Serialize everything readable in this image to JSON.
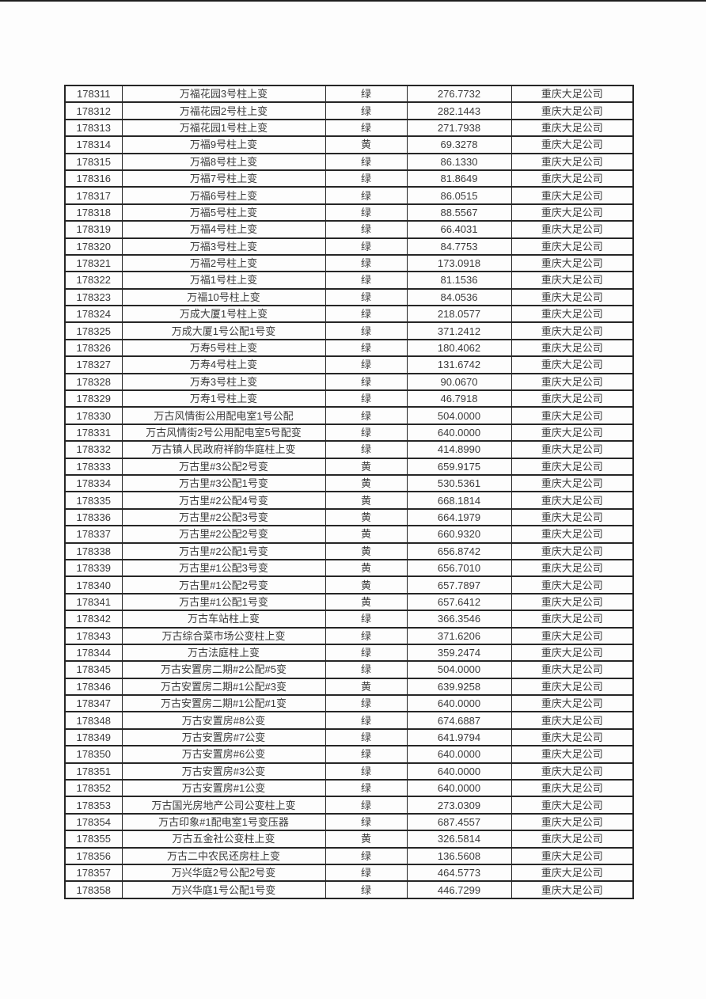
{
  "page": {
    "background_color": "#fdfdfd",
    "top_edge_color": "#1f1f1f",
    "table_border_color": "#262626",
    "text_color": "#3a3a3a"
  },
  "table": {
    "status_legend": {
      "green_label": "绿",
      "yellow_label": "黄"
    },
    "rows": [
      [
        "178311",
        "万福花园3号柱上变",
        "绿",
        "276.7732",
        "重庆大足公司"
      ],
      [
        "178312",
        "万福花园2号柱上变",
        "绿",
        "282.1443",
        "重庆大足公司"
      ],
      [
        "178313",
        "万福花园1号柱上变",
        "绿",
        "271.7938",
        "重庆大足公司"
      ],
      [
        "178314",
        "万福9号柱上变",
        "黄",
        "69.3278",
        "重庆大足公司"
      ],
      [
        "178315",
        "万福8号柱上变",
        "绿",
        "86.1330",
        "重庆大足公司"
      ],
      [
        "178316",
        "万福7号柱上变",
        "绿",
        "81.8649",
        "重庆大足公司"
      ],
      [
        "178317",
        "万福6号柱上变",
        "绿",
        "86.0515",
        "重庆大足公司"
      ],
      [
        "178318",
        "万福5号柱上变",
        "绿",
        "88.5567",
        "重庆大足公司"
      ],
      [
        "178319",
        "万福4号柱上变",
        "绿",
        "66.4031",
        "重庆大足公司"
      ],
      [
        "178320",
        "万福3号柱上变",
        "绿",
        "84.7753",
        "重庆大足公司"
      ],
      [
        "178321",
        "万福2号柱上变",
        "绿",
        "173.0918",
        "重庆大足公司"
      ],
      [
        "178322",
        "万福1号柱上变",
        "绿",
        "81.1536",
        "重庆大足公司"
      ],
      [
        "178323",
        "万福10号柱上变",
        "绿",
        "84.0536",
        "重庆大足公司"
      ],
      [
        "178324",
        "万成大厦1号柱上变",
        "绿",
        "218.0577",
        "重庆大足公司"
      ],
      [
        "178325",
        "万成大厦1号公配1号变",
        "绿",
        "371.2412",
        "重庆大足公司"
      ],
      [
        "178326",
        "万寿5号柱上变",
        "绿",
        "180.4062",
        "重庆大足公司"
      ],
      [
        "178327",
        "万寿4号柱上变",
        "绿",
        "131.6742",
        "重庆大足公司"
      ],
      [
        "178328",
        "万寿3号柱上变",
        "绿",
        "90.0670",
        "重庆大足公司"
      ],
      [
        "178329",
        "万寿1号柱上变",
        "绿",
        "46.7918",
        "重庆大足公司"
      ],
      [
        "178330",
        "万古风情街公用配电室1号公配",
        "绿",
        "504.0000",
        "重庆大足公司"
      ],
      [
        "178331",
        "万古风情街2号公用配电室5号配变",
        "绿",
        "640.0000",
        "重庆大足公司"
      ],
      [
        "178332",
        "万古镇人民政府祥韵华庭柱上变",
        "绿",
        "414.8990",
        "重庆大足公司"
      ],
      [
        "178333",
        "万古里#3公配2号变",
        "黄",
        "659.9175",
        "重庆大足公司"
      ],
      [
        "178334",
        "万古里#3公配1号变",
        "黄",
        "530.5361",
        "重庆大足公司"
      ],
      [
        "178335",
        "万古里#2公配4号变",
        "黄",
        "668.1814",
        "重庆大足公司"
      ],
      [
        "178336",
        "万古里#2公配3号变",
        "黄",
        "664.1979",
        "重庆大足公司"
      ],
      [
        "178337",
        "万古里#2公配2号变",
        "黄",
        "660.9320",
        "重庆大足公司"
      ],
      [
        "178338",
        "万古里#2公配1号变",
        "黄",
        "656.8742",
        "重庆大足公司"
      ],
      [
        "178339",
        "万古里#1公配3号变",
        "黄",
        "656.7010",
        "重庆大足公司"
      ],
      [
        "178340",
        "万古里#1公配2号变",
        "黄",
        "657.7897",
        "重庆大足公司"
      ],
      [
        "178341",
        "万古里#1公配1号变",
        "黄",
        "657.6412",
        "重庆大足公司"
      ],
      [
        "178342",
        "万古车站柱上变",
        "绿",
        "366.3546",
        "重庆大足公司"
      ],
      [
        "178343",
        "万古综合菜市场公变柱上变",
        "绿",
        "371.6206",
        "重庆大足公司"
      ],
      [
        "178344",
        "万古法庭柱上变",
        "绿",
        "359.2474",
        "重庆大足公司"
      ],
      [
        "178345",
        "万古安置房二期#2公配#5变",
        "绿",
        "504.0000",
        "重庆大足公司"
      ],
      [
        "178346",
        "万古安置房二期#1公配#3变",
        "黄",
        "639.9258",
        "重庆大足公司"
      ],
      [
        "178347",
        "万古安置房二期#1公配#1变",
        "绿",
        "640.0000",
        "重庆大足公司"
      ],
      [
        "178348",
        "万古安置房#8公变",
        "绿",
        "674.6887",
        "重庆大足公司"
      ],
      [
        "178349",
        "万古安置房#7公变",
        "绿",
        "641.9794",
        "重庆大足公司"
      ],
      [
        "178350",
        "万古安置房#6公变",
        "绿",
        "640.0000",
        "重庆大足公司"
      ],
      [
        "178351",
        "万古安置房#3公变",
        "绿",
        "640.0000",
        "重庆大足公司"
      ],
      [
        "178352",
        "万古安置房#1公变",
        "绿",
        "640.0000",
        "重庆大足公司"
      ],
      [
        "178353",
        "万古国光房地产公司公变柱上变",
        "绿",
        "273.0309",
        "重庆大足公司"
      ],
      [
        "178354",
        "万古印象#1配电室1号变压器",
        "绿",
        "687.4557",
        "重庆大足公司"
      ],
      [
        "178355",
        "万古五金社公变柱上变",
        "黄",
        "326.5814",
        "重庆大足公司"
      ],
      [
        "178356",
        "万古二中农民还房柱上变",
        "绿",
        "136.5608",
        "重庆大足公司"
      ],
      [
        "178357",
        "万兴华庭2号公配2号变",
        "绿",
        "464.5773",
        "重庆大足公司"
      ],
      [
        "178358",
        "万兴华庭1号公配1号变",
        "绿",
        "446.7299",
        "重庆大足公司"
      ]
    ]
  }
}
